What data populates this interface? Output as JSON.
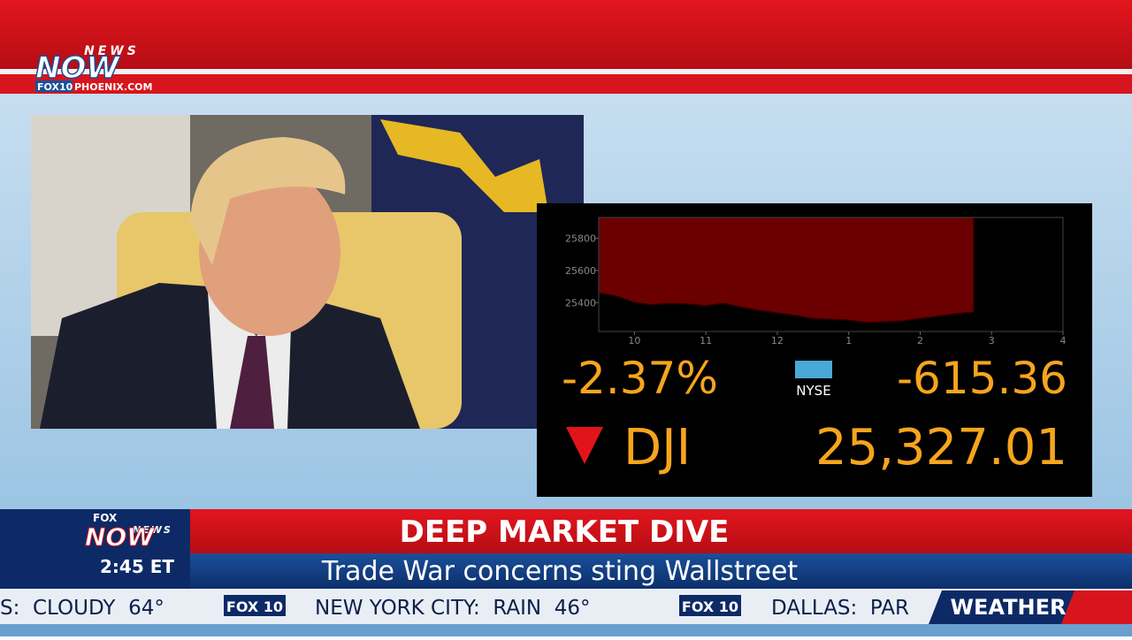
{
  "logo": {
    "brand": "NEWS",
    "brand2": "NOW",
    "station": "FOX10",
    "site": "PHOENIX.COM"
  },
  "market": {
    "change_pct": "-2.37%",
    "exchange": "NYSE",
    "change_pts": "-615.36",
    "index": "DJI",
    "level": "25,327.01"
  },
  "chart_data": {
    "type": "area",
    "x": [
      9.5,
      9.75,
      10,
      10.25,
      10.5,
      10.75,
      11,
      11.25,
      11.5,
      11.75,
      12,
      12.25,
      12.5,
      12.75,
      13,
      13.25,
      13.5,
      13.75,
      14,
      14.25,
      14.5,
      14.75
    ],
    "values": [
      25460,
      25440,
      25400,
      25385,
      25395,
      25390,
      25380,
      25395,
      25370,
      25350,
      25335,
      25320,
      25300,
      25295,
      25290,
      25275,
      25280,
      25285,
      25300,
      25315,
      25330,
      25340
    ],
    "color": "#6a0000",
    "line_color": "#2a0000",
    "xlim": [
      9.5,
      16
    ],
    "xticks": [
      10,
      11,
      12,
      {
        "value": 13,
        "label": "1"
      },
      {
        "value": 14,
        "label": "2"
      },
      {
        "value": 15,
        "label": "3"
      },
      {
        "value": 16,
        "label": "4"
      }
    ],
    "ylim": [
      25220,
      25930
    ],
    "yticks": [
      25400,
      25600,
      25800
    ]
  },
  "lower_third": {
    "network": "FOX",
    "brand": "NEWS",
    "brand2": "NOW",
    "time": "2:45 ET",
    "headline": "DEEP MARKET DIVE",
    "subhead": "Trade War concerns sting Wallstreet"
  },
  "ticker": {
    "items": [
      "S:  CLOUDY  64°",
      "NEW YORK CITY:  RAIN  46°",
      "DALLAS:  PAR"
    ],
    "station": "FOX 10",
    "label": "WEATHER"
  }
}
